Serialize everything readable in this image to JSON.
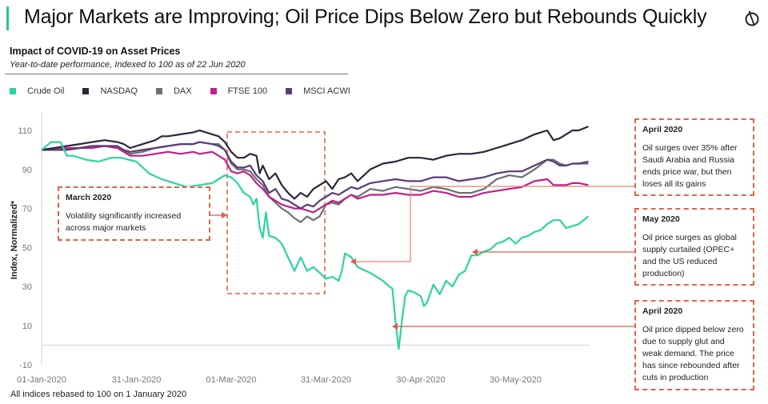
{
  "header": {
    "title": "Major Markets are Improving; Oil Price Dips Below Zero but Rebounds Quickly",
    "logo_icon": "circle-slash-logo-icon",
    "accent_color": "#2bc49a"
  },
  "footnote": "All indices rebased to 100 on 1 January  2020",
  "annotations": [
    {
      "id": "march",
      "title": "March 2020",
      "text": "Volatility significantly increased across major markets"
    },
    {
      "id": "april-surge",
      "title": "April 2020",
      "text": "Oil surges over 35%  after Saudi Arabia and Russia ends price war, but then loses all its gains"
    },
    {
      "id": "may",
      "title": "May 2020",
      "text": "Oil price surges as global supply curtailed (OPEC+ and the US reduced production)"
    },
    {
      "id": "april-zero",
      "title": "April 2020",
      "text": "Oil price dipped below zero due to supply glut and weak demand. The price has since rebounded after cuts in production"
    }
  ],
  "chart_data": {
    "type": "line",
    "title": "Impact of COVID-19 on Asset Prices",
    "subtitle": "Year-to-date performance, Indexed to 100 as of 22 Jun 2020",
    "xlabel": "",
    "ylabel": "Index, Normalized*",
    "ylim": [
      -10,
      120
    ],
    "yticks": [
      110,
      90,
      70,
      50,
      30,
      10,
      -10
    ],
    "xlim_days": [
      0,
      173
    ],
    "xticks": [
      {
        "day": 0,
        "label": "01-Jan-2020"
      },
      {
        "day": 30,
        "label": "31-Jan-2020"
      },
      {
        "day": 60,
        "label": "01-Mar-2020"
      },
      {
        "day": 90,
        "label": "31-Mar-2020"
      },
      {
        "day": 120,
        "label": "30-Apr-2020"
      },
      {
        "day": 150,
        "label": "30-May-2020"
      }
    ],
    "zero_line": true,
    "grid": false,
    "legend_position": "top-left",
    "series": [
      {
        "name": "Crude Oil",
        "color": "#2bd4a0",
        "days": [
          0,
          3,
          6,
          8,
          10,
          14,
          18,
          22,
          25,
          30,
          34,
          38,
          42,
          46,
          50,
          54,
          58,
          60,
          62,
          64,
          66,
          67,
          68,
          69,
          70,
          71,
          72,
          74,
          76,
          78,
          80,
          82,
          84,
          86,
          88,
          90,
          92,
          94,
          95,
          96,
          98,
          100,
          104,
          108,
          110,
          111,
          112,
          113,
          114,
          115,
          116,
          118,
          120,
          121,
          122,
          124,
          126,
          128,
          130,
          132,
          134,
          136,
          138,
          140,
          142,
          144,
          146,
          148,
          150,
          152,
          154,
          156,
          158,
          160,
          162,
          164,
          166,
          168,
          170,
          173
        ],
        "values": [
          100,
          104,
          104,
          97,
          97,
          95,
          94,
          96,
          96,
          94,
          88,
          85,
          83,
          81,
          82,
          83,
          87,
          86,
          83,
          78,
          76,
          72,
          75,
          60,
          55,
          68,
          56,
          55,
          52,
          45,
          38,
          45,
          38,
          40,
          37,
          34,
          35,
          33,
          38,
          47,
          45,
          40,
          37,
          33,
          30,
          29,
          12,
          -2,
          12,
          25,
          28,
          27,
          25,
          20,
          22,
          31,
          26,
          33,
          30,
          36,
          38,
          46,
          46,
          48,
          49,
          52,
          53,
          55,
          52,
          55,
          56,
          58,
          59,
          62,
          64,
          64,
          60,
          61,
          62,
          66
        ]
      },
      {
        "name": "NASDAQ",
        "color": "#2a2838",
        "days": [
          0,
          4,
          8,
          12,
          16,
          20,
          24,
          26,
          28,
          32,
          36,
          38,
          40,
          44,
          48,
          50,
          54,
          56,
          58,
          60,
          62,
          64,
          66,
          68,
          69,
          70,
          72,
          74,
          76,
          78,
          80,
          82,
          84,
          86,
          88,
          90,
          92,
          94,
          96,
          98,
          100,
          104,
          108,
          112,
          116,
          120,
          124,
          128,
          132,
          136,
          140,
          144,
          148,
          152,
          156,
          160,
          162,
          164,
          166,
          168,
          170,
          173
        ],
        "values": [
          100,
          101,
          102,
          103,
          104,
          105,
          104,
          103,
          101,
          103,
          105,
          107,
          107,
          108,
          109,
          110,
          108,
          107,
          104,
          99,
          96,
          96,
          98,
          97,
          88,
          92,
          85,
          88,
          82,
          78,
          75,
          78,
          76,
          80,
          82,
          84,
          80,
          85,
          86,
          88,
          84,
          90,
          93,
          94,
          96,
          96,
          95,
          97,
          98,
          98,
          99,
          101,
          103,
          105,
          108,
          110,
          105,
          106,
          108,
          110,
          110,
          112
        ]
      },
      {
        "name": "DAX",
        "color": "#6b7078",
        "days": [
          0,
          4,
          8,
          12,
          16,
          20,
          24,
          26,
          28,
          32,
          36,
          40,
          44,
          48,
          50,
          54,
          56,
          58,
          60,
          62,
          64,
          66,
          68,
          70,
          72,
          74,
          76,
          78,
          80,
          82,
          84,
          86,
          88,
          90,
          92,
          94,
          96,
          98,
          100,
          104,
          108,
          112,
          116,
          120,
          124,
          128,
          132,
          136,
          140,
          144,
          148,
          152,
          156,
          160,
          162,
          164,
          166,
          168,
          170,
          173
        ],
        "values": [
          100,
          100,
          100,
          101,
          102,
          102,
          101,
          100,
          98,
          99,
          101,
          102,
          103,
          103,
          104,
          103,
          103,
          100,
          93,
          90,
          90,
          89,
          85,
          82,
          76,
          73,
          70,
          68,
          65,
          63,
          66,
          64,
          66,
          72,
          73,
          72,
          75,
          77,
          76,
          80,
          79,
          81,
          80,
          79,
          81,
          80,
          78,
          78,
          80,
          85,
          87,
          86,
          90,
          95,
          95,
          93,
          92,
          93,
          93,
          93
        ]
      },
      {
        "name": "FTSE 100",
        "color": "#c0208a",
        "days": [
          0,
          4,
          8,
          12,
          16,
          20,
          24,
          26,
          28,
          32,
          36,
          40,
          44,
          48,
          50,
          54,
          56,
          58,
          60,
          62,
          64,
          66,
          68,
          70,
          72,
          74,
          76,
          78,
          80,
          82,
          84,
          86,
          88,
          90,
          92,
          94,
          96,
          98,
          100,
          104,
          108,
          112,
          116,
          120,
          124,
          128,
          132,
          136,
          140,
          144,
          148,
          152,
          156,
          160,
          162,
          164,
          166,
          168,
          170,
          173
        ],
        "values": [
          100,
          100,
          101,
          101,
          101,
          102,
          101,
          99,
          97,
          97,
          98,
          99,
          98,
          99,
          98,
          99,
          97,
          95,
          89,
          88,
          89,
          87,
          83,
          80,
          76,
          74,
          72,
          71,
          70,
          70,
          69,
          68,
          70,
          72,
          74,
          73,
          75,
          77,
          75,
          77,
          77,
          78,
          77,
          77,
          79,
          78,
          76,
          76,
          78,
          79,
          80,
          81,
          84,
          85,
          82,
          82,
          82,
          83,
          83,
          82
        ]
      },
      {
        "name": "MSCI ACWI",
        "color": "#5a3d78",
        "days": [
          0,
          4,
          8,
          12,
          16,
          20,
          24,
          26,
          28,
          32,
          36,
          40,
          44,
          48,
          50,
          54,
          56,
          58,
          60,
          62,
          64,
          66,
          68,
          70,
          72,
          74,
          76,
          78,
          80,
          82,
          84,
          86,
          88,
          90,
          92,
          94,
          96,
          98,
          100,
          104,
          108,
          112,
          116,
          120,
          124,
          128,
          132,
          136,
          140,
          144,
          148,
          152,
          156,
          160,
          162,
          164,
          166,
          168,
          170,
          173
        ],
        "values": [
          100,
          100,
          100,
          101,
          102,
          102,
          102,
          100,
          99,
          100,
          101,
          102,
          103,
          103,
          104,
          103,
          102,
          100,
          94,
          91,
          91,
          92,
          87,
          84,
          78,
          80,
          75,
          74,
          72,
          70,
          72,
          71,
          74,
          76,
          78,
          77,
          79,
          81,
          80,
          83,
          84,
          85,
          84,
          84,
          86,
          86,
          84,
          85,
          86,
          88,
          89,
          89,
          92,
          95,
          94,
          92,
          92,
          93,
          93,
          94
        ]
      }
    ]
  }
}
